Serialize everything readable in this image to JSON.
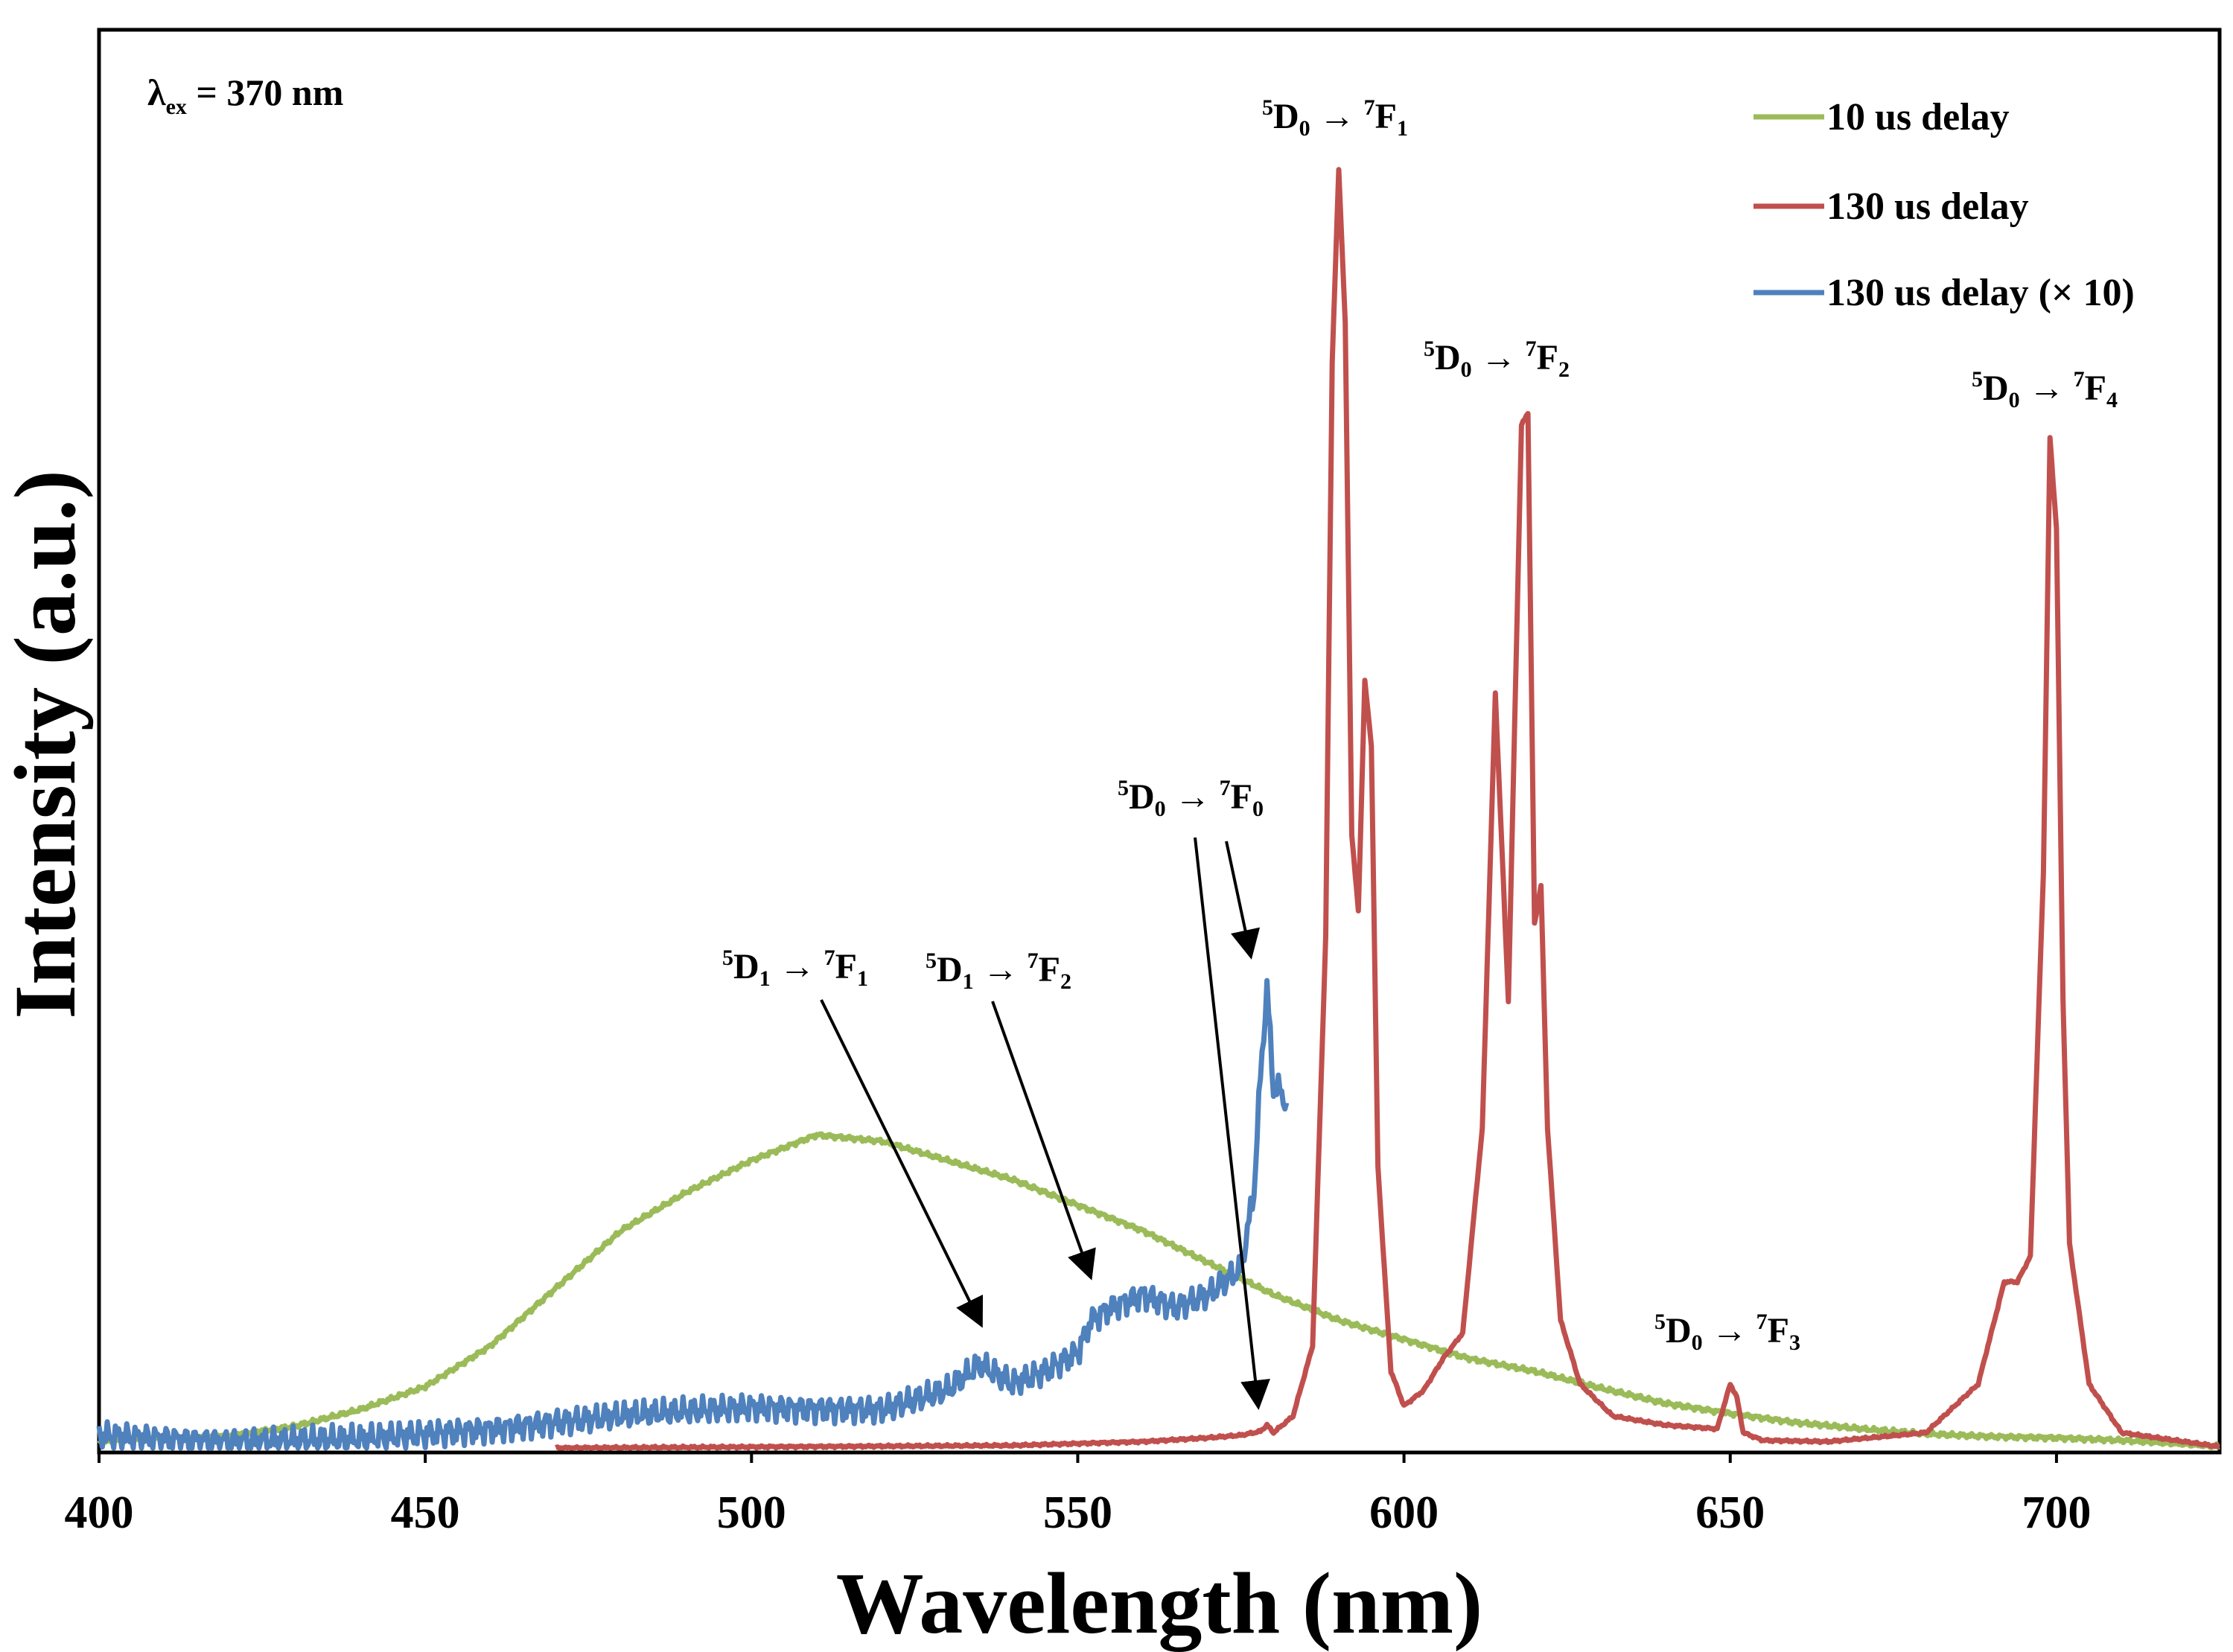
{
  "chart_data": {
    "type": "line",
    "title": "",
    "xlabel": "Wavelength (nm)",
    "ylabel": "Intensity (a.u.)",
    "xlim": [
      400,
      725
    ],
    "ylim": [
      0,
      1.0
    ],
    "x_ticks": [
      "400",
      "450",
      "500",
      "550",
      "600",
      "650",
      "700"
    ],
    "y_ticks": [],
    "grid": false,
    "legend_position": "top-right",
    "excitation_label": "λex = 370 nm",
    "excitation": {
      "symbol": "λ",
      "sub": "ex",
      "rest": " = 370 nm"
    },
    "series": [
      {
        "name": "10 us delay",
        "color": "#9BBB59",
        "x": [
          400,
          420,
          430,
          440,
          450,
          460,
          470,
          480,
          490,
          500,
          510,
          520,
          530,
          540,
          550,
          560,
          570,
          580,
          590,
          600,
          610,
          620,
          630,
          640,
          650,
          660,
          670,
          680,
          690,
          700,
          710,
          720,
          725
        ],
        "y": [
          0.005,
          0.01,
          0.017,
          0.03,
          0.048,
          0.08,
          0.125,
          0.17,
          0.2,
          0.225,
          0.245,
          0.24,
          0.225,
          0.21,
          0.19,
          0.17,
          0.145,
          0.12,
          0.1,
          0.085,
          0.07,
          0.06,
          0.047,
          0.035,
          0.027,
          0.02,
          0.015,
          0.011,
          0.009,
          0.008,
          0.006,
          0.003,
          0.001
        ]
      },
      {
        "name": "130 us delay",
        "color": "#C0504D",
        "x": [
          470,
          540,
          560,
          570,
          575,
          578,
          579,
          580,
          583,
          586,
          588,
          589,
          590,
          591,
          592,
          593,
          594,
          595,
          596,
          598,
          600,
          603,
          606,
          609,
          612,
          614,
          616,
          618,
          619,
          620,
          621,
          622,
          624,
          627,
          632,
          640,
          648,
          650,
          651,
          652,
          655,
          665,
          680,
          688,
          692,
          694,
          696,
          698,
          699,
          700,
          701,
          702,
          705,
          710,
          725
        ],
        "y": [
          0.0,
          0.002,
          0.005,
          0.008,
          0.01,
          0.013,
          0.018,
          0.012,
          0.025,
          0.08,
          0.4,
          0.85,
          1.0,
          0.88,
          0.48,
          0.42,
          0.6,
          0.55,
          0.22,
          0.06,
          0.033,
          0.045,
          0.07,
          0.09,
          0.25,
          0.59,
          0.35,
          0.8,
          0.81,
          0.41,
          0.44,
          0.25,
          0.1,
          0.05,
          0.025,
          0.018,
          0.015,
          0.05,
          0.04,
          0.012,
          0.006,
          0.005,
          0.012,
          0.05,
          0.13,
          0.13,
          0.15,
          0.45,
          0.79,
          0.72,
          0.35,
          0.16,
          0.05,
          0.012,
          0.001
        ]
      },
      {
        "name": "130 us delay (× 10)",
        "color": "#4F81BD",
        "x": [
          400,
          420,
          440,
          460,
          480,
          500,
          520,
          530,
          535,
          540,
          545,
          550,
          552,
          555,
          560,
          565,
          570,
          575,
          577,
          578,
          579,
          580,
          581,
          582
        ],
        "y": [
          0.01,
          0.005,
          0.007,
          0.015,
          0.025,
          0.032,
          0.03,
          0.045,
          0.065,
          0.05,
          0.06,
          0.075,
          0.1,
          0.11,
          0.12,
          0.11,
          0.12,
          0.14,
          0.2,
          0.29,
          0.36,
          0.28,
          0.28,
          0.27
        ]
      }
    ],
    "annotations": [
      {
        "label": "5D0 → 7F1",
        "upper": "D",
        "sup1": "5",
        "sub1": "0",
        "sup2": "7",
        "sub2": "1"
      },
      {
        "label": "5D0 → 7F2",
        "upper": "D",
        "sup1": "5",
        "sub1": "0",
        "sup2": "7",
        "sub2": "2"
      },
      {
        "label": "5D0 → 7F4",
        "upper": "D",
        "sup1": "5",
        "sub1": "0",
        "sup2": "7",
        "sub2": "4"
      },
      {
        "label": "5D0 → 7F0",
        "upper": "D",
        "sup1": "5",
        "sub1": "0",
        "sup2": "7",
        "sub2": "0"
      },
      {
        "label": "5D1 → 7F1",
        "upper": "D",
        "sup1": "5",
        "sub1": "1",
        "sup2": "7",
        "sub2": "1"
      },
      {
        "label": "5D1 → 7F2",
        "upper": "D",
        "sup1": "5",
        "sub1": "1",
        "sup2": "7",
        "sub2": "2"
      },
      {
        "label": "5D0 → 7F3",
        "upper": "D",
        "sup1": "5",
        "sub1": "0",
        "sup2": "7",
        "sub2": "3"
      }
    ]
  }
}
